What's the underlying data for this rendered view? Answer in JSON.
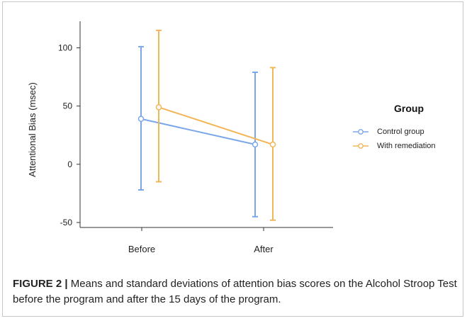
{
  "caption": {
    "label": "FIGURE 2 |",
    "text": " Means and standard deviations of attention bias scores on the Alcohol Stroop Test before the program and after the 15 days of the program."
  },
  "chart_data": {
    "type": "line",
    "ylabel": "Attentional Bias (msec)",
    "xlabel": "",
    "title": "",
    "categories": [
      "Before",
      "After"
    ],
    "yticks": [
      100,
      50,
      0,
      -50
    ],
    "ylim": [
      -55,
      125
    ],
    "legend": {
      "title": "Group",
      "placement": "right"
    },
    "series": [
      {
        "name": "Control group",
        "color": "#7ba7e8",
        "values": [
          39,
          17
        ],
        "upper": [
          101,
          79
        ],
        "lower": [
          -22,
          -45
        ]
      },
      {
        "name": "With remediation",
        "color": "#f2b65a",
        "values": [
          49,
          17
        ],
        "upper": [
          115,
          83
        ],
        "lower": [
          -15,
          -48
        ]
      }
    ]
  }
}
